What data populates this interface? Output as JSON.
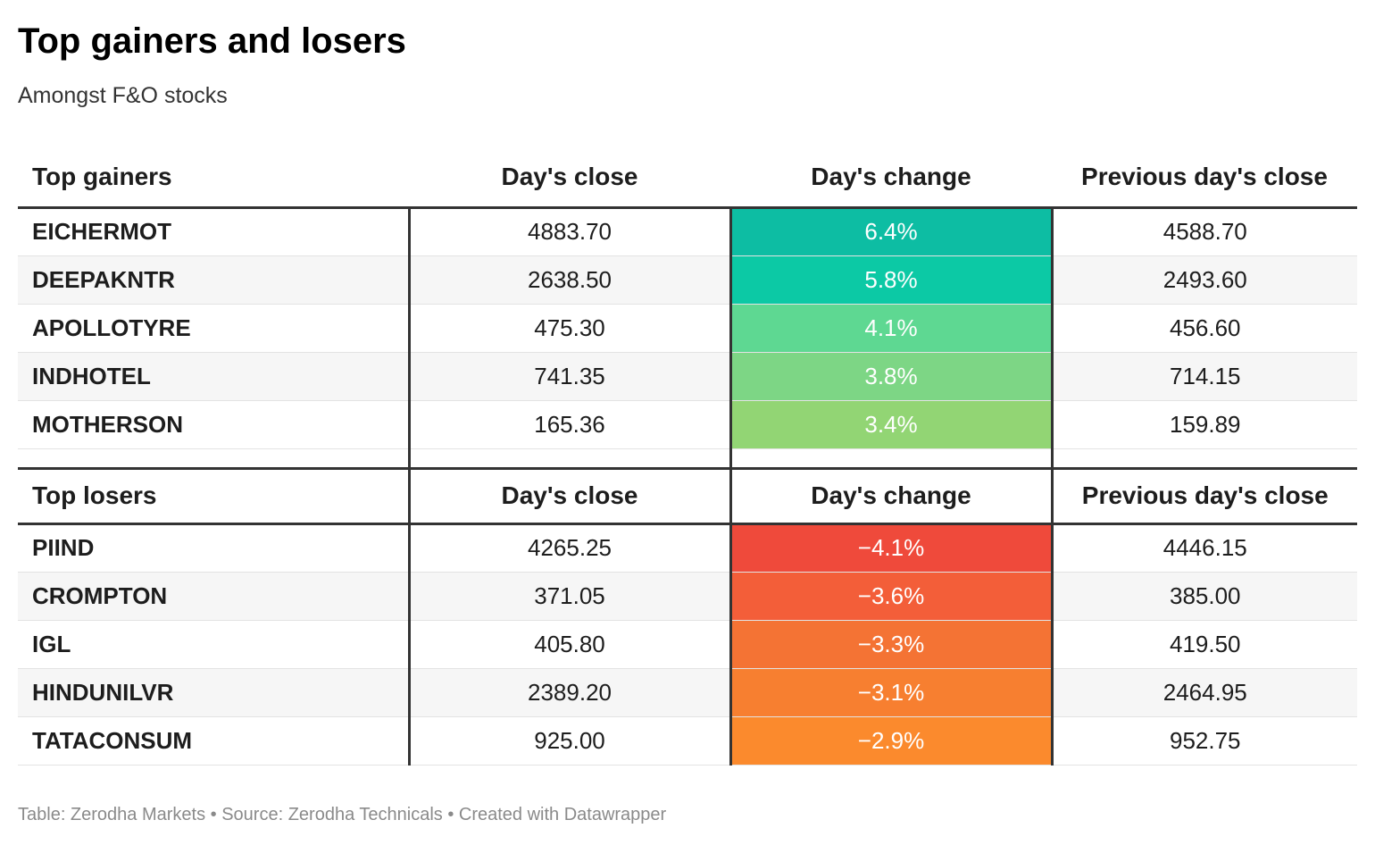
{
  "title": "Top gainers and losers",
  "subtitle": "Amongst F&O stocks",
  "footer": "Table: Zerodha Markets • Source: Zerodha Technicals • Created with Datawrapper",
  "chart_data": {
    "type": "table",
    "sections": [
      {
        "headers": [
          "Top gainers",
          "Day's close",
          "Day's change",
          "Previous day's close"
        ],
        "rows": [
          {
            "name": "EICHERMOT",
            "close": "4883.70",
            "change": "6.4%",
            "prev": "4588.70",
            "color": "#0dbda3"
          },
          {
            "name": "DEEPAKNTR",
            "close": "2638.50",
            "change": "5.8%",
            "prev": "2493.60",
            "color": "#0cc9a5"
          },
          {
            "name": "APOLLOTYRE",
            "close": "475.30",
            "change": "4.1%",
            "prev": "456.60",
            "color": "#5ed892"
          },
          {
            "name": "INDHOTEL",
            "close": "741.35",
            "change": "3.8%",
            "prev": "714.15",
            "color": "#7dd685"
          },
          {
            "name": "MOTHERSON",
            "close": "165.36",
            "change": "3.4%",
            "prev": "159.89",
            "color": "#92d574"
          }
        ]
      },
      {
        "headers": [
          "Top losers",
          "Day's close",
          "Day's change",
          "Previous day's close"
        ],
        "rows": [
          {
            "name": "PIIND",
            "close": "4265.25",
            "change": "−4.1%",
            "prev": "4446.15",
            "color": "#ef4a3b"
          },
          {
            "name": "CROMPTON",
            "close": "371.05",
            "change": "−3.6%",
            "prev": "385.00",
            "color": "#f35e39"
          },
          {
            "name": "IGL",
            "close": "405.80",
            "change": "−3.3%",
            "prev": "419.50",
            "color": "#f47334"
          },
          {
            "name": "HINDUNILVR",
            "close": "2389.20",
            "change": "−3.1%",
            "prev": "2464.95",
            "color": "#f77f30"
          },
          {
            "name": "TATACONSUM",
            "close": "925.00",
            "change": "−2.9%",
            "prev": "952.75",
            "color": "#fb8a2d"
          }
        ]
      }
    ]
  }
}
